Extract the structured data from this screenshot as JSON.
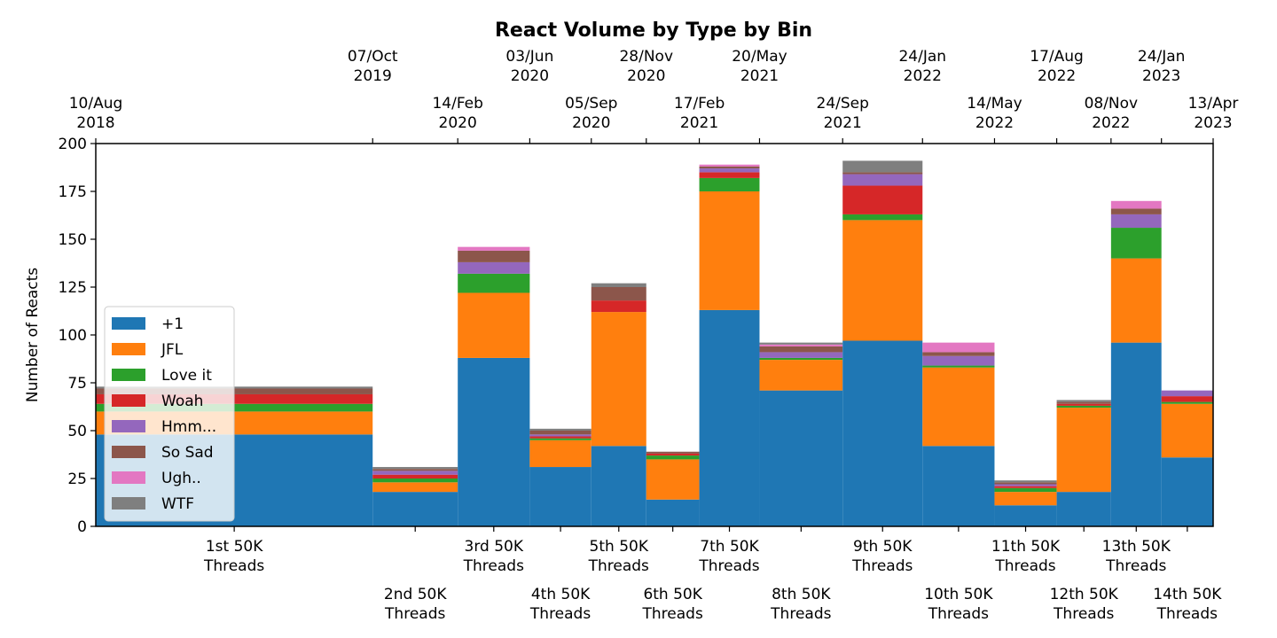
{
  "chart_data": {
    "type": "bar",
    "stacked": true,
    "title": "React Volume by Type by Bin",
    "ylabel": "Number of Reacts",
    "xlabel": "",
    "ylim": [
      0,
      200
    ],
    "yticks": [
      0,
      25,
      50,
      75,
      100,
      125,
      150,
      175,
      200
    ],
    "grid": false,
    "legend_placement": "center-left",
    "bin_labels": [
      "1st 50K\nThreads",
      "2nd 50K\nThreads",
      "3rd 50K\nThreads",
      "4th 50K\nThreads",
      "5th 50K\nThreads",
      "6th 50K\nThreads",
      "7th 50K\nThreads",
      "8th 50K\nThreads",
      "9th 50K\nThreads",
      "10th 50K\nThreads",
      "11th 50K\nThreads",
      "12th 50K\nThreads",
      "13th 50K\nThreads",
      "14th 50K\nThreads"
    ],
    "bin_edges": [
      "2018-08-10",
      "2019-10-07",
      "2020-02-14",
      "2020-06-03",
      "2020-09-05",
      "2020-11-28",
      "2021-02-17",
      "2021-05-20",
      "2021-09-24",
      "2022-01-24",
      "2022-05-14",
      "2022-08-17",
      "2022-11-08",
      "2023-01-24",
      "2023-04-13"
    ],
    "top_ticks_upper": [
      {
        "date": "2019-10-07",
        "label": "07/Oct\n2019"
      },
      {
        "date": "2020-06-03",
        "label": "03/Jun\n2020"
      },
      {
        "date": "2020-11-28",
        "label": "28/Nov\n2020"
      },
      {
        "date": "2021-05-20",
        "label": "20/May\n2021"
      },
      {
        "date": "2022-01-24",
        "label": "24/Jan\n2022"
      },
      {
        "date": "2022-08-17",
        "label": "17/Aug\n2022"
      },
      {
        "date": "2023-01-24",
        "label": "24/Jan\n2023"
      }
    ],
    "top_ticks_lower": [
      {
        "date": "2018-08-10",
        "label": "10/Aug\n2018"
      },
      {
        "date": "2020-02-14",
        "label": "14/Feb\n2020"
      },
      {
        "date": "2020-09-05",
        "label": "05/Sep\n2020"
      },
      {
        "date": "2021-02-17",
        "label": "17/Feb\n2021"
      },
      {
        "date": "2021-09-24",
        "label": "24/Sep\n2021"
      },
      {
        "date": "2022-05-14",
        "label": "14/May\n2022"
      },
      {
        "date": "2022-11-08",
        "label": "08/Nov\n2022"
      },
      {
        "date": "2023-04-13",
        "label": "13/Apr\n2023"
      }
    ],
    "series": [
      {
        "name": "+1",
        "color": "#1f77b4",
        "values": [
          48,
          18,
          88,
          31,
          42,
          14,
          113,
          71,
          97,
          42,
          11,
          18,
          96,
          36
        ]
      },
      {
        "name": "JFL",
        "color": "#ff7f0e",
        "values": [
          12,
          5,
          34,
          14,
          70,
          21,
          62,
          16,
          63,
          41,
          7,
          44,
          44,
          28
        ]
      },
      {
        "name": "Love it",
        "color": "#2ca02c",
        "values": [
          4,
          2,
          10,
          1,
          0,
          2,
          7,
          1,
          3,
          1,
          2,
          1,
          16,
          1
        ]
      },
      {
        "name": "Woah",
        "color": "#d62728",
        "values": [
          5,
          2,
          0,
          1,
          6,
          1,
          3,
          0,
          15,
          0,
          1,
          1,
          0,
          3
        ]
      },
      {
        "name": "Hmm...",
        "color": "#9467bd",
        "values": [
          0,
          2,
          6,
          1,
          0,
          0,
          2,
          3,
          6,
          5,
          1,
          0,
          7,
          3
        ]
      },
      {
        "name": "So Sad",
        "color": "#8c564b",
        "values": [
          3,
          1,
          6,
          2,
          7,
          1,
          1,
          3,
          1,
          2,
          1,
          1,
          3,
          0
        ]
      },
      {
        "name": "Ugh..",
        "color": "#e377c2",
        "values": [
          0,
          0,
          2,
          0,
          0,
          0,
          1,
          1,
          0,
          5,
          0,
          0,
          4,
          0
        ]
      },
      {
        "name": "WTF",
        "color": "#7f7f7f",
        "values": [
          1,
          1,
          0,
          1,
          2,
          0,
          0,
          1,
          6,
          0,
          1,
          1,
          0,
          0
        ]
      }
    ]
  }
}
